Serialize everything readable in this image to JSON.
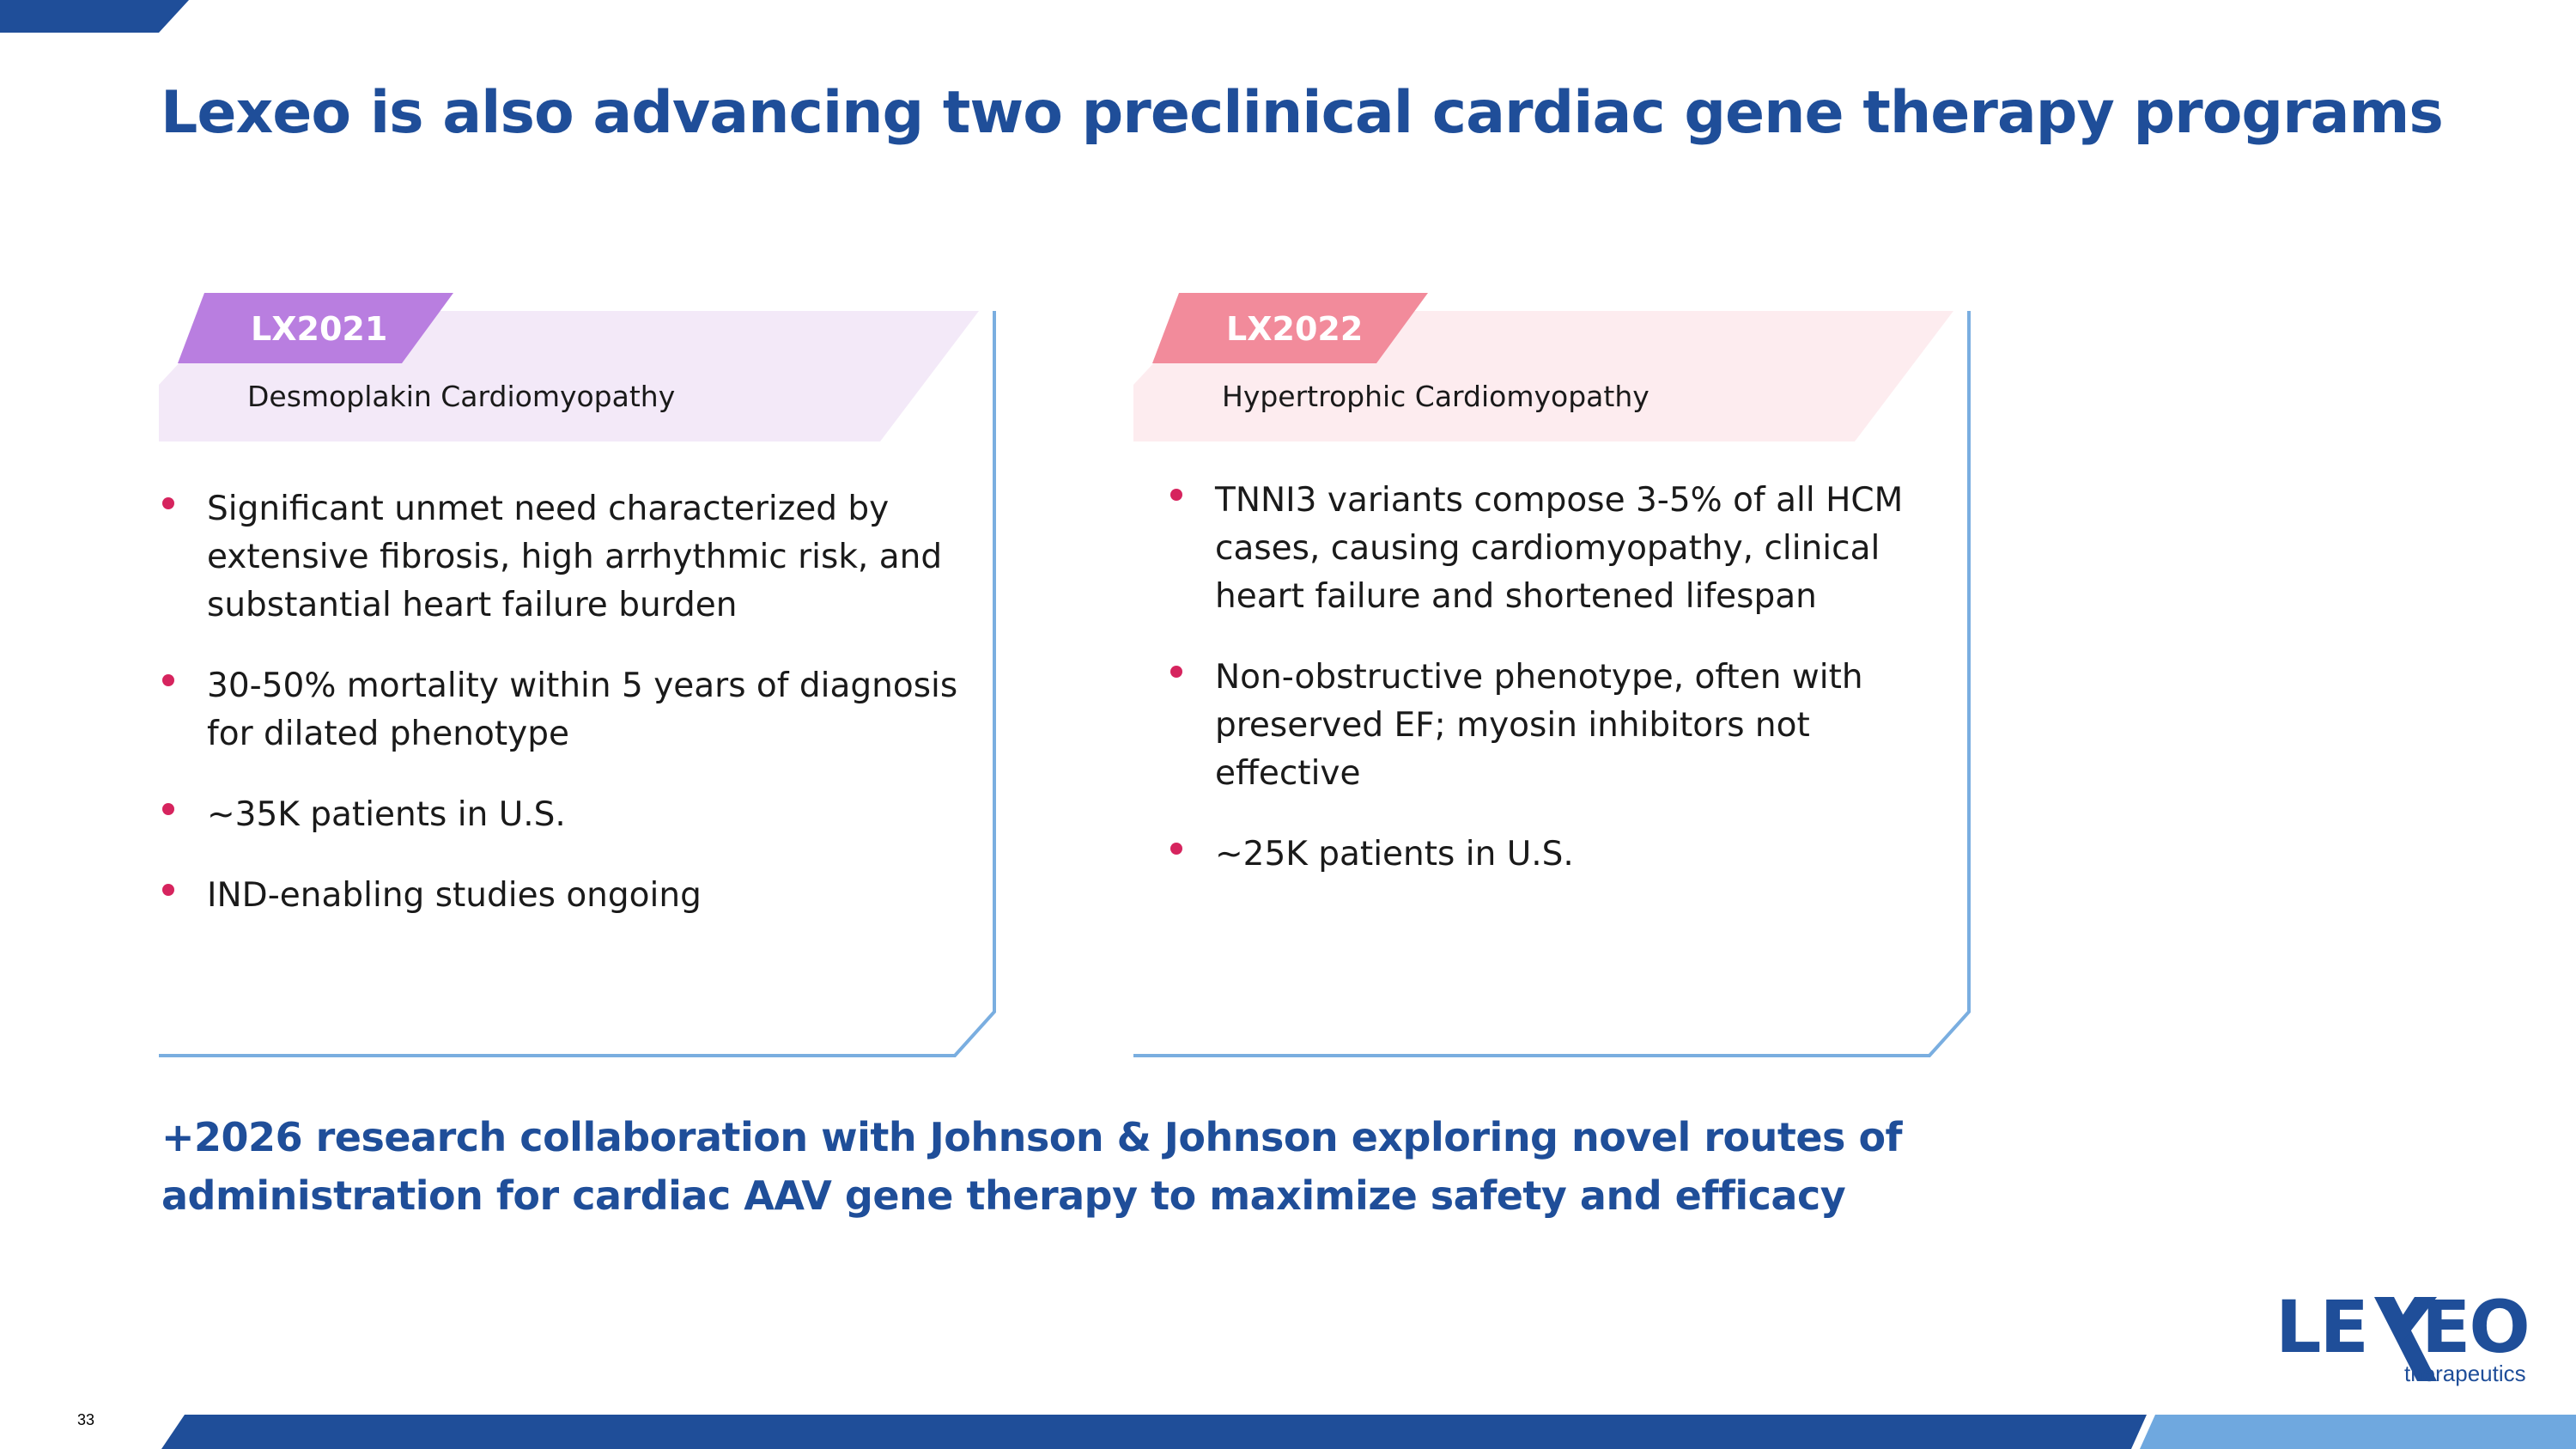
{
  "title": "Lexeo is also advancing two preclinical cardiac gene therapy programs",
  "programs": [
    {
      "code": "LX2021",
      "indication": "Desmoplakin Cardiomyopathy",
      "bullets": [
        "Significant unmet need characterized by extensive fibrosis, high arrhythmic risk, and substantial heart failure burden",
        "30-50% mortality within 5 years of diagnosis for dilated phenotype",
        "~35K patients in U.S.",
        "IND-enabling studies ongoing"
      ]
    },
    {
      "code": "LX2022",
      "indication": "Hypertrophic Cardiomyopathy",
      "bullets": [
        "TNNI3 variants compose 3-5% of all HCM cases, causing cardiomyopathy, clinical heart failure and shortened lifespan",
        "Non-obstructive phenotype, often with preserved EF; myosin inhibitors not effective",
        "~25K patients in U.S."
      ]
    }
  ],
  "collaboration": "+2026 research collaboration with Johnson & Johnson exploring novel routes of administration for cardiac AAV gene therapy to maximize safety and efficacy",
  "page_number": "33",
  "logo": {
    "word_left": "LE",
    "word_right": "EO",
    "tagline": "therapeutics",
    "mark": "X"
  },
  "colors": {
    "title": "#1f4e99",
    "lx2021_tag": "#b97ee0",
    "lx2021_band": "#f3e9f8",
    "lx2022_tag": "#f28b9b",
    "lx2022_band": "#fdecef",
    "bullet": "#d6245e",
    "card_border": "#7aaee0",
    "bar_dark": "#1f4e99",
    "bar_light": "#6fa8df"
  }
}
